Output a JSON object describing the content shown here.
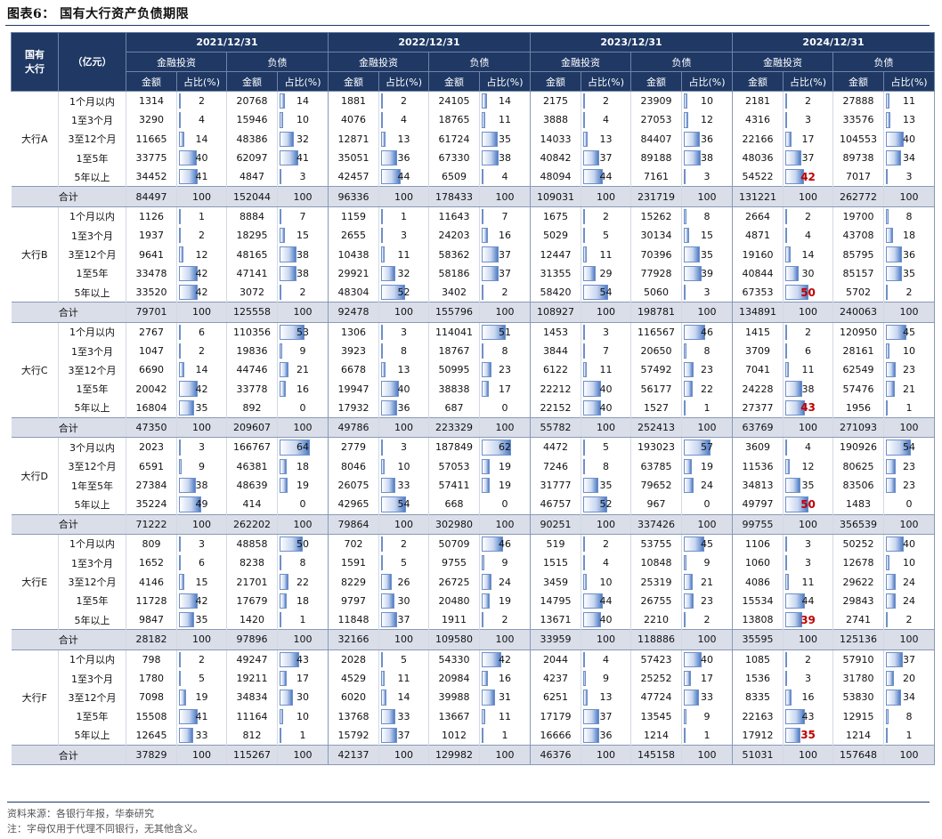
{
  "title": "图表6： 国有大行资产负债期限",
  "header": {
    "corner": "国有\n大行",
    "unit": "（亿元）",
    "years": [
      "2021/12/31",
      "2022/12/31",
      "2023/12/31",
      "2024/12/31"
    ],
    "groups": [
      "金融投资",
      "负债"
    ],
    "subcols": [
      "金额",
      "占比(%)"
    ]
  },
  "banks": [
    {
      "name": "大行A",
      "rows": [
        {
          "label": "1个月以内",
          "vals": [
            1314,
            2,
            20768,
            14,
            1881,
            2,
            24105,
            14,
            2175,
            2,
            23909,
            10,
            2181,
            2,
            27888,
            11
          ]
        },
        {
          "label": "1至3个月",
          "vals": [
            3290,
            4,
            15946,
            10,
            4076,
            4,
            18765,
            11,
            3888,
            4,
            27053,
            12,
            4316,
            3,
            33576,
            13
          ]
        },
        {
          "label": "3至12个月",
          "vals": [
            11665,
            14,
            48386,
            32,
            12871,
            13,
            61724,
            35,
            14033,
            13,
            84407,
            36,
            22166,
            17,
            104553,
            40
          ]
        },
        {
          "label": "1至5年",
          "vals": [
            33775,
            40,
            62097,
            41,
            35051,
            36,
            67330,
            38,
            40842,
            37,
            89188,
            38,
            48036,
            37,
            89738,
            34
          ]
        },
        {
          "label": "5年以上",
          "vals": [
            34452,
            41,
            4847,
            3,
            42457,
            44,
            6509,
            4,
            48094,
            44,
            7161,
            3,
            54522,
            42,
            7017,
            3
          ]
        }
      ],
      "total": {
        "label": "合计",
        "vals": [
          84497,
          100,
          152044,
          100,
          96336,
          100,
          178433,
          100,
          109031,
          100,
          231719,
          100,
          131221,
          100,
          262772,
          100
        ]
      }
    },
    {
      "name": "大行B",
      "rows": [
        {
          "label": "1个月以内",
          "vals": [
            1126,
            1,
            8884,
            7,
            1159,
            1,
            11643,
            7,
            1675,
            2,
            15262,
            8,
            2664,
            2,
            19700,
            8
          ]
        },
        {
          "label": "1至3个月",
          "vals": [
            1937,
            2,
            18295,
            15,
            2655,
            3,
            24203,
            16,
            5029,
            5,
            30134,
            15,
            4871,
            4,
            43708,
            18
          ]
        },
        {
          "label": "3至12个月",
          "vals": [
            9641,
            12,
            48165,
            38,
            10438,
            11,
            58362,
            37,
            12447,
            11,
            70396,
            35,
            19160,
            14,
            85795,
            36
          ]
        },
        {
          "label": "1至5年",
          "vals": [
            33478,
            42,
            47141,
            38,
            29921,
            32,
            58186,
            37,
            31355,
            29,
            77928,
            39,
            40844,
            30,
            85157,
            35
          ]
        },
        {
          "label": "5年以上",
          "vals": [
            33520,
            42,
            3072,
            2,
            48304,
            52,
            3402,
            2,
            58420,
            54,
            5060,
            3,
            67353,
            50,
            5702,
            2
          ]
        }
      ],
      "total": {
        "label": "合计",
        "vals": [
          79701,
          100,
          125558,
          100,
          92478,
          100,
          155796,
          100,
          108927,
          100,
          198781,
          100,
          134891,
          100,
          240063,
          100
        ]
      }
    },
    {
      "name": "大行C",
      "rows": [
        {
          "label": "1个月以内",
          "vals": [
            2767,
            6,
            110356,
            53,
            1306,
            3,
            114041,
            51,
            1453,
            3,
            116567,
            46,
            1415,
            2,
            120950,
            45
          ]
        },
        {
          "label": "1至3个月",
          "vals": [
            1047,
            2,
            19836,
            9,
            3923,
            8,
            18767,
            8,
            3844,
            7,
            20650,
            8,
            3709,
            6,
            28161,
            10
          ]
        },
        {
          "label": "3至12个月",
          "vals": [
            6690,
            14,
            44746,
            21,
            6678,
            13,
            50995,
            23,
            6122,
            11,
            57492,
            23,
            7041,
            11,
            62549,
            23
          ]
        },
        {
          "label": "1至5年",
          "vals": [
            20042,
            42,
            33778,
            16,
            19947,
            40,
            38838,
            17,
            22212,
            40,
            56177,
            22,
            24228,
            38,
            57476,
            21
          ]
        },
        {
          "label": "5年以上",
          "vals": [
            16804,
            35,
            892,
            0,
            17932,
            36,
            687,
            0,
            22152,
            40,
            1527,
            1,
            27377,
            43,
            1956,
            1
          ]
        }
      ],
      "total": {
        "label": "合计",
        "vals": [
          47350,
          100,
          209607,
          100,
          49786,
          100,
          223329,
          100,
          55782,
          100,
          252413,
          100,
          63769,
          100,
          271093,
          100
        ]
      }
    },
    {
      "name": "大行D",
      "rows": [
        {
          "label": "3个月以内",
          "vals": [
            2023,
            3,
            166767,
            64,
            2779,
            3,
            187849,
            62,
            4472,
            5,
            193023,
            57,
            3609,
            4,
            190926,
            54
          ]
        },
        {
          "label": "3至12个月",
          "vals": [
            6591,
            9,
            46381,
            18,
            8046,
            10,
            57053,
            19,
            7246,
            8,
            63785,
            19,
            11536,
            12,
            80625,
            23
          ]
        },
        {
          "label": "1年至5年",
          "vals": [
            27384,
            38,
            48639,
            19,
            26075,
            33,
            57411,
            19,
            31777,
            35,
            79652,
            24,
            34813,
            35,
            83506,
            23
          ]
        },
        {
          "label": "5年以上",
          "vals": [
            35224,
            49,
            414,
            0,
            42965,
            54,
            668,
            0,
            46757,
            52,
            967,
            0,
            49797,
            50,
            1483,
            0
          ]
        }
      ],
      "total": {
        "label": "合计",
        "vals": [
          71222,
          100,
          262202,
          100,
          79864,
          100,
          302980,
          100,
          90251,
          100,
          337426,
          100,
          99755,
          100,
          356539,
          100
        ]
      }
    },
    {
      "name": "大行E",
      "rows": [
        {
          "label": "1个月以内",
          "vals": [
            809,
            3,
            48858,
            50,
            702,
            2,
            50709,
            46,
            519,
            2,
            53755,
            45,
            1106,
            3,
            50252,
            40
          ]
        },
        {
          "label": "1至3个月",
          "vals": [
            1652,
            6,
            8238,
            8,
            1591,
            5,
            9755,
            9,
            1515,
            4,
            10848,
            9,
            1060,
            3,
            12678,
            10
          ]
        },
        {
          "label": "3至12个月",
          "vals": [
            4146,
            15,
            21701,
            22,
            8229,
            26,
            26725,
            24,
            3459,
            10,
            25319,
            21,
            4086,
            11,
            29622,
            24
          ]
        },
        {
          "label": "1至5年",
          "vals": [
            11728,
            42,
            17679,
            18,
            9797,
            30,
            20480,
            19,
            14795,
            44,
            26755,
            23,
            15534,
            44,
            29843,
            24
          ]
        },
        {
          "label": "5年以上",
          "vals": [
            9847,
            35,
            1420,
            1,
            11848,
            37,
            1911,
            2,
            13671,
            40,
            2210,
            2,
            13808,
            39,
            2741,
            2
          ]
        }
      ],
      "total": {
        "label": "合计",
        "vals": [
          28182,
          100,
          97896,
          100,
          32166,
          100,
          109580,
          100,
          33959,
          100,
          118886,
          100,
          35595,
          100,
          125136,
          100
        ]
      }
    },
    {
      "name": "大行F",
      "rows": [
        {
          "label": "1个月以内",
          "vals": [
            798,
            2,
            49247,
            43,
            2028,
            5,
            54330,
            42,
            2044,
            4,
            57423,
            40,
            1085,
            2,
            57910,
            37
          ]
        },
        {
          "label": "1至3个月",
          "vals": [
            1780,
            5,
            19211,
            17,
            4529,
            11,
            20984,
            16,
            4237,
            9,
            25252,
            17,
            1536,
            3,
            31780,
            20
          ]
        },
        {
          "label": "3至12个月",
          "vals": [
            7098,
            19,
            34834,
            30,
            6020,
            14,
            39988,
            31,
            6251,
            13,
            47724,
            33,
            8335,
            16,
            53830,
            34
          ]
        },
        {
          "label": "1至5年",
          "vals": [
            15508,
            41,
            11164,
            10,
            13768,
            33,
            13667,
            11,
            17179,
            37,
            13545,
            9,
            22163,
            43,
            12915,
            8
          ]
        },
        {
          "label": "5年以上",
          "vals": [
            12645,
            33,
            812,
            1,
            15792,
            37,
            1012,
            1,
            16666,
            36,
            1214,
            1,
            17912,
            35,
            1214,
            1
          ]
        }
      ],
      "total": {
        "label": "合计",
        "vals": [
          37829,
          100,
          115267,
          100,
          42137,
          100,
          129982,
          100,
          46376,
          100,
          145158,
          100,
          51031,
          100,
          157648,
          100
        ]
      }
    }
  ],
  "highlight_2024_pct": [
    "42",
    "50",
    "43",
    "50",
    "39",
    "35"
  ],
  "accent_color": "#1f3864",
  "highlight_color": "#c00000",
  "footer": {
    "source": "资料来源：各银行年报，华泰研究",
    "note": "注：字母仅用于代理不同银行，无其他含义。"
  }
}
